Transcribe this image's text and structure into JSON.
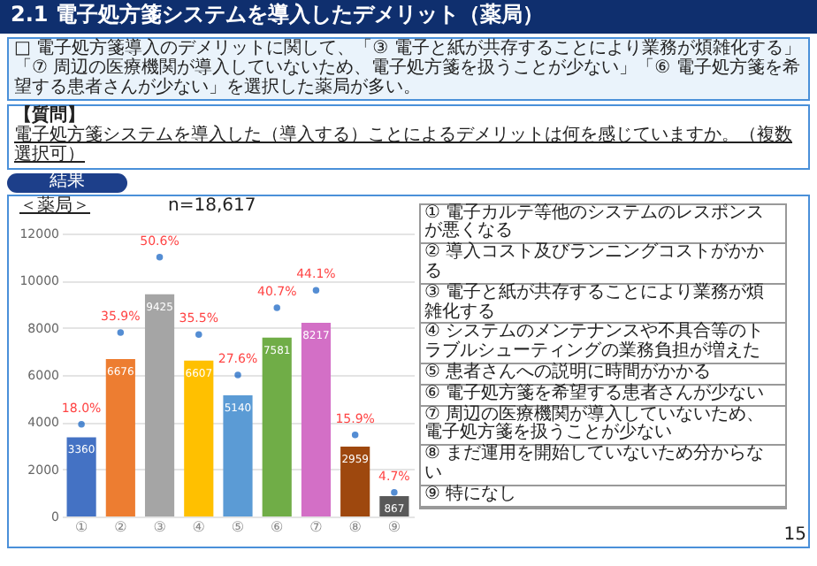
{
  "chart_data": {
    "type": "bar",
    "title": "2.1 電子処方箋システムを導入したデメリット（薬局）",
    "subtitle": "□ 電子処方箋導入のデメリットに関して、「③ 電子と紙が共存することにより業務が煩雑化する」「⑦ 周辺の医療機関が導入していないため、電子処方箋を扱うことが少ない」「⑥ 電子処方箋を希望する患者さんが少ない」を選択した薬局が多い。",
    "annotations": [
      "【質問】",
      "電子処方箋システムを導入した（導入する）ことによるデメリットは何を感じていますか。（複数選択可）",
      "結果",
      "＜薬局＞",
      "n=18,617",
      "① 電子カルテ等他のシステムのレスポンスが悪くなる",
      "② 導入コスト及びランニングコストがかかる",
      "③ 電子と紙が共存することにより業務が煩雑化する",
      "④ システムのメンテナンスや不具合等のトラブルシューティングの業務負担が増えた",
      "⑤ 患者さんへの説明に時間がかかる",
      "⑥ 電子処方箋を希望する患者さんが少ない",
      "⑦ 周辺の医療機関が導入していないため、電子処方箋を扱うことが少ない",
      "⑧ まだ運用を開始していないため分からない",
      "⑨ 特になし",
      "15"
    ],
    "categories": [
      "①",
      "②",
      "③",
      "④",
      "⑤",
      "⑥",
      "⑦",
      "⑧",
      "⑨"
    ],
    "ylim": [
      0,
      12000
    ],
    "yticks": [
      0,
      2000,
      4000,
      6000,
      8000,
      10000,
      12000
    ],
    "grid": "y",
    "data_labels": true,
    "y2lim": [
      0,
      55.2
    ],
    "series": [
      {
        "values": [
          3360,
          6676,
          9425,
          6607,
          5140,
          7581,
          8217,
          2959,
          867
        ],
        "colors": [
          "#4472c4",
          "#ed7d31",
          "#a5a5a5",
          "#ffc000",
          "#5b9bd5",
          "#70ad47",
          "#d36fc6",
          "#9e480e",
          "#595959"
        ]
      },
      {
        "type": "scatter",
        "axis": "y2",
        "color": "#0b5cc0",
        "marker": "circle",
        "values": [
          18.0,
          35.9,
          50.6,
          35.5,
          27.6,
          40.7,
          44.1,
          15.9,
          4.7
        ],
        "value_labels": [
          "18.0%",
          "35.9%",
          "50.6%",
          "35.5%",
          "27.6%",
          "40.7%",
          "44.1%",
          "15.9%",
          "4.7%"
        ]
      }
    ]
  }
}
